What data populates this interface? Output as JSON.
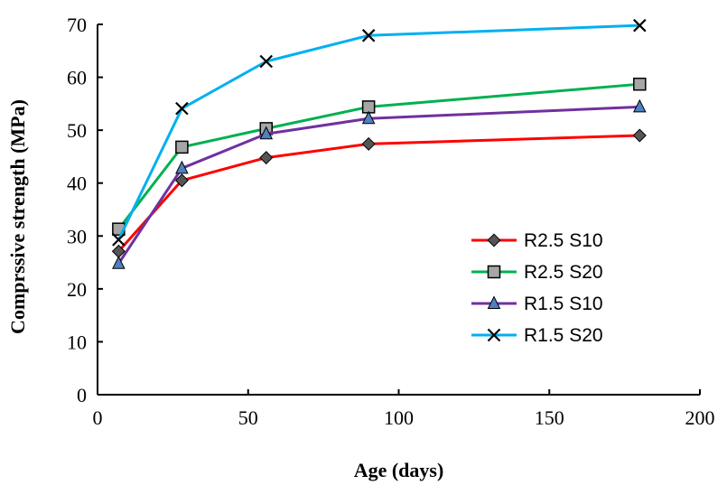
{
  "chart_data": {
    "type": "line",
    "xlabel": "Age (days)",
    "ylabel": "Comprssive strength (MPa)",
    "xlim": [
      0,
      200
    ],
    "ylim": [
      0,
      70
    ],
    "xticks": [
      0,
      50,
      100,
      150,
      200
    ],
    "yticks": [
      0,
      10,
      20,
      30,
      40,
      50,
      60,
      70
    ],
    "grid": false,
    "legend_position": "lower-right",
    "x": [
      7,
      28,
      56,
      90,
      180
    ],
    "series": [
      {
        "name": "R2.5 S10",
        "values": [
          27.1,
          40.5,
          44.8,
          47.4,
          49.0
        ],
        "color": "#ff0000",
        "marker": "diamond",
        "marker_color": "#555555"
      },
      {
        "name": "R2.5 S20",
        "values": [
          31.3,
          46.8,
          50.3,
          54.4,
          58.7
        ],
        "color": "#00b050",
        "marker": "square",
        "marker_color": "#a6a6a6"
      },
      {
        "name": "R1.5 S10",
        "values": [
          24.8,
          42.8,
          49.3,
          52.2,
          54.4
        ],
        "color": "#7030a0",
        "marker": "triangle",
        "marker_color": "#4f81bd"
      },
      {
        "name": "R1.5 S20",
        "values": [
          29.3,
          54.1,
          63.0,
          67.9,
          69.8
        ],
        "color": "#00b0f0",
        "marker": "x",
        "marker_color": "#000000"
      }
    ]
  }
}
